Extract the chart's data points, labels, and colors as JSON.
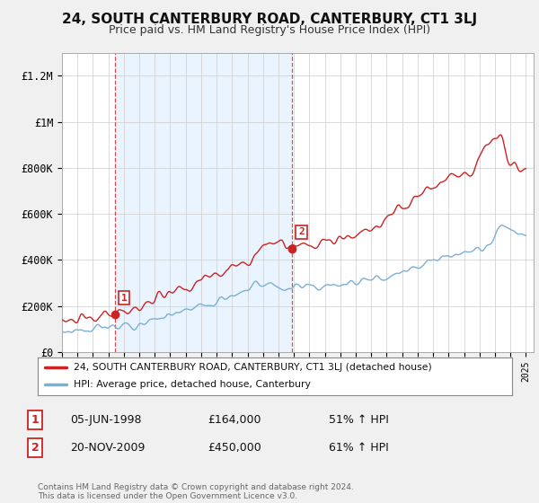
{
  "title": "24, SOUTH CANTERBURY ROAD, CANTERBURY, CT1 3LJ",
  "subtitle": "Price paid vs. HM Land Registry's House Price Index (HPI)",
  "ylim": [
    0,
    1300000
  ],
  "yticks": [
    0,
    200000,
    400000,
    600000,
    800000,
    1000000,
    1200000
  ],
  "ytick_labels": [
    "£0",
    "£200K",
    "£400K",
    "£600K",
    "£800K",
    "£1M",
    "£1.2M"
  ],
  "xlim_start": 1995,
  "xlim_end": 2025.5,
  "line1_color": "#cc2222",
  "line2_color": "#7ab0d4",
  "vline1_x": 1998.42,
  "vline2_x": 2009.88,
  "shade_color": "#ddeeff",
  "marker1_y": 164000,
  "marker2_y": 450000,
  "legend1_text": "24, SOUTH CANTERBURY ROAD, CANTERBURY, CT1 3LJ (detached house)",
  "legend2_text": "HPI: Average price, detached house, Canterbury",
  "info1_label": "1",
  "info1_date": "05-JUN-1998",
  "info1_price": "£164,000",
  "info1_hpi": "51% ↑ HPI",
  "info2_label": "2",
  "info2_date": "20-NOV-2009",
  "info2_price": "£450,000",
  "info2_hpi": "61% ↑ HPI",
  "footer": "Contains HM Land Registry data © Crown copyright and database right 2024.\nThis data is licensed under the Open Government Licence v3.0.",
  "bg_color": "#f0f0f0",
  "plot_bg_color": "#ffffff",
  "grid_color": "#cccccc"
}
